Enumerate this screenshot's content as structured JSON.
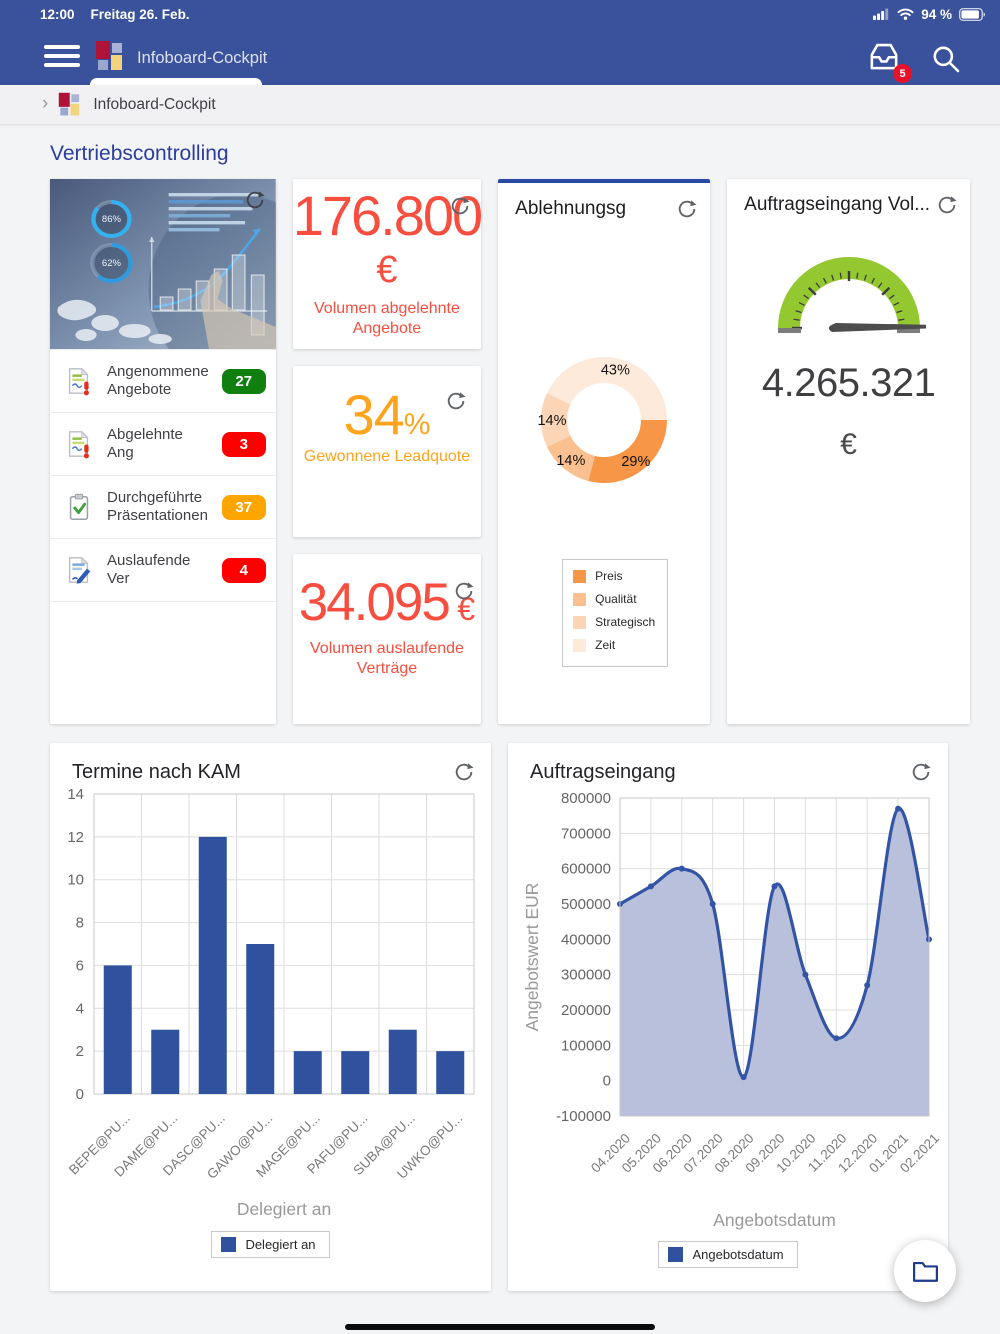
{
  "status_bar": {
    "time": "12:00",
    "date": "Freitag 26. Feb.",
    "battery_percent": "94 %"
  },
  "header": {
    "title": "Infoboard-Cockpit",
    "inbox_badge_count": "5"
  },
  "breadcrumb": {
    "item": "Infoboard-Cockpit"
  },
  "page_title": "Vertriebscontrolling",
  "overview_tile": {
    "image_ring1": "86%",
    "image_ring2": "62%",
    "items": [
      {
        "label": "Angenommene Angebote",
        "value": "27",
        "status": "green"
      },
      {
        "label": "Abgelehnte Ang",
        "value": "3",
        "status": "red"
      },
      {
        "label": "Durchgeführte Präsentationen",
        "value": "37",
        "status": "orange"
      },
      {
        "label": "Auslaufende Ver",
        "value": "4",
        "status": "red"
      }
    ]
  },
  "kpi_tiles": {
    "rejected_offers_volume": {
      "value": "176.800",
      "currency": "€",
      "label_line1": "Volumen abgelehnte",
      "label_line2": "Angebote"
    },
    "won_lead_quota": {
      "value": "34",
      "unit": "%",
      "label": "Gewonnene Leadquote"
    },
    "expiring_contracts_volume": {
      "value": "34.095",
      "currency": "€",
      "label_line1": "Volumen auslaufende",
      "label_line2": "Verträge"
    }
  },
  "donut_tile": {
    "title": "Ablehnungsg"
  },
  "gauge_tile": {
    "title": "Auftragseingang Vol...",
    "value": "4.265.321",
    "currency": "€"
  },
  "bar_tile": {
    "title": "Termine nach KAM",
    "xlabel": "Delegiert an",
    "legend": "Delegiert an"
  },
  "area_tile": {
    "title": "Auftragseingang",
    "xlabel": "Angebotsdatum",
    "ylabel": "Angebotswert EUR",
    "legend": "Angebotsdatum"
  },
  "colors": {
    "header_blue": "#3A529B",
    "accent_blue": "#2B4AA6",
    "title_navy": "#2C3D9C",
    "kpi_red": "#F84E3F",
    "kpi_orange": "#FFA41C",
    "badge_green": "#0F8010",
    "badge_red": "#FF0000",
    "badge_orange": "#FFA500",
    "bar_blue": "#2F519E",
    "line_blue": "#3354A5",
    "area_fill": "#B4BDD9",
    "gauge_green": "#94C831"
  },
  "chart_data": [
    {
      "id": "rejection-reasons-donut",
      "type": "pie",
      "donut": true,
      "title": "Ablehnungsg",
      "labels": [
        "Preis",
        "Qualität",
        "Strategisch",
        "Zeit"
      ],
      "values": [
        29,
        14,
        14,
        43
      ],
      "unit": "%",
      "data_labels": [
        "29%",
        "14%",
        "14%",
        "43%"
      ],
      "colors": [
        "#F79646",
        "#FAC08F",
        "#FBD5B5",
        "#FDEADA"
      ],
      "legend_position": "bottom-left"
    },
    {
      "id": "order-volume-gauge",
      "type": "gauge",
      "value": "4.265.321",
      "unit": "€",
      "arc_color": "#94C831",
      "needle": "max"
    },
    {
      "id": "appointments-bar",
      "type": "bar",
      "title": "Termine nach KAM",
      "categories": [
        "BEPE@PU...",
        "DAME@PU...",
        "DASC@PU...",
        "GAWO@PU...",
        "MAGE@PU...",
        "PAFU@PU...",
        "SUBA@PU...",
        "UWKO@PU..."
      ],
      "values": [
        6,
        3,
        12,
        7,
        2,
        2,
        3,
        2
      ],
      "xlabel": "Delegiert an",
      "legend": [
        "Delegiert an"
      ],
      "ylim": [
        0,
        14
      ],
      "ytick_step": 2,
      "bar_color": "#2F519E",
      "grid": true
    },
    {
      "id": "order-intake-area",
      "type": "area",
      "title": "Auftragseingang",
      "x": [
        "04.2020",
        "05.2020",
        "06.2020",
        "07.2020",
        "08.2020",
        "09.2020",
        "10.2020",
        "11.2020",
        "12.2020",
        "01.2021",
        "02.2021"
      ],
      "values": [
        500000,
        550000,
        600000,
        500000,
        10000,
        550000,
        300000,
        120000,
        270000,
        770000,
        400000
      ],
      "xlabel": "Angebotsdatum",
      "ylabel": "Angebotswert EUR",
      "legend": [
        "Angebotsdatum"
      ],
      "ylim": [
        -100000,
        800000
      ],
      "ytick_step": 100000,
      "line_color": "#3354A5",
      "fill_color": "#B4BDD9",
      "grid": true
    }
  ]
}
